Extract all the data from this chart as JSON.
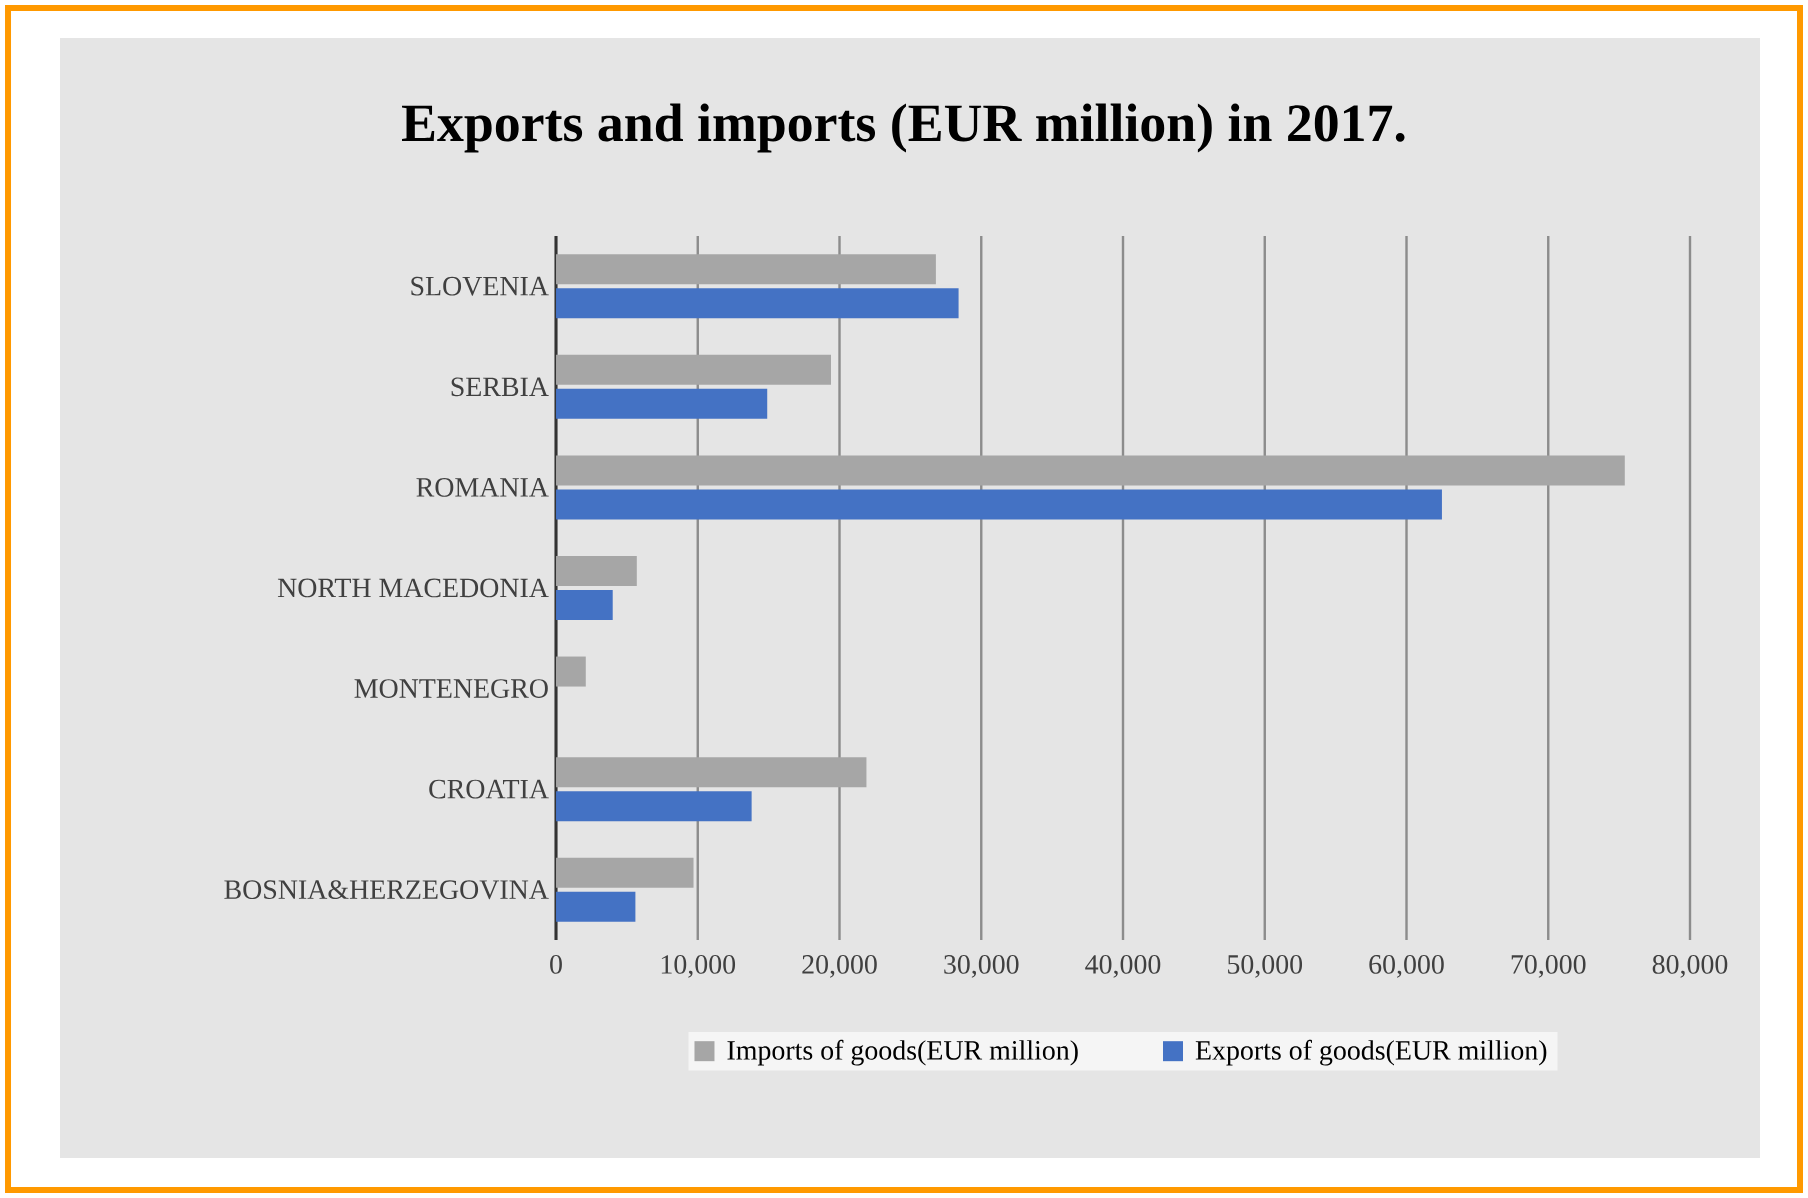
{
  "chart_data": {
    "type": "bar",
    "orientation": "horizontal",
    "title": "Exports and imports (EUR million) in 2017.",
    "categories": [
      "SLOVENIA",
      "SERBIA",
      "ROMANIA",
      "NORTH MACEDONIA",
      "MONTENEGRO",
      "CROATIA",
      "BOSNIA&HERZEGOVINA"
    ],
    "series": [
      {
        "name": "Imports of goods(EUR million)",
        "color": "#a6a6a6",
        "values": [
          26800,
          19400,
          75400,
          5700,
          2100,
          21900,
          9700
        ]
      },
      {
        "name": "Exports of goods(EUR million)",
        "color": "#4472c4",
        "values": [
          28400,
          14900,
          62500,
          4000,
          null,
          13800,
          5600
        ]
      }
    ],
    "xlim": [
      0,
      80000
    ],
    "xticks": [
      0,
      {
        "value": 10000,
        "label": "10,000"
      },
      {
        "value": 20000,
        "label": "20,000"
      },
      {
        "value": 30000,
        "label": "30,000"
      },
      {
        "value": 40000,
        "label": "40,000"
      },
      {
        "value": 50000,
        "label": "50,000"
      },
      {
        "value": 60000,
        "label": "60,000"
      },
      {
        "value": 70000,
        "label": "70,000"
      },
      {
        "value": 80000,
        "label": "80,000"
      }
    ],
    "grid": "x",
    "legend": "bottom"
  }
}
